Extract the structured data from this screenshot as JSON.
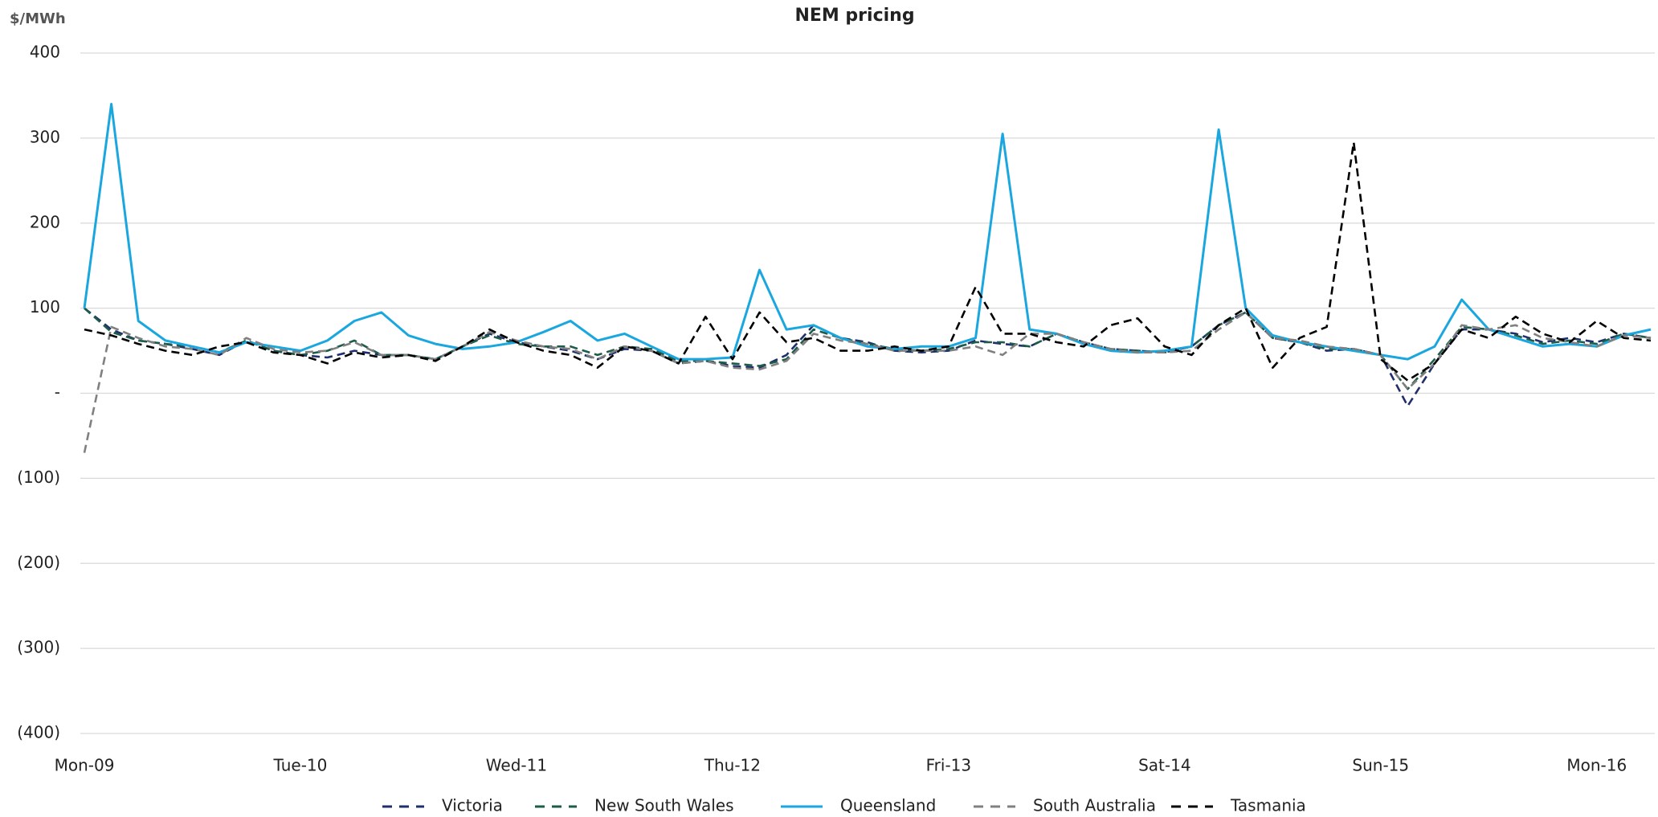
{
  "chart_data": {
    "type": "line",
    "title": "NEM pricing",
    "y_label": "$/MWh",
    "categories": [
      "Mon-09",
      null,
      null,
      null,
      null,
      null,
      null,
      null,
      "Tue-10",
      null,
      null,
      null,
      null,
      null,
      null,
      null,
      "Wed-11",
      null,
      null,
      null,
      null,
      null,
      null,
      null,
      "Thu-12",
      null,
      null,
      null,
      null,
      null,
      null,
      null,
      "Fri-13",
      null,
      null,
      null,
      null,
      null,
      null,
      null,
      "Sat-14",
      null,
      null,
      null,
      null,
      null,
      null,
      null,
      "Sun-15",
      null,
      null,
      null,
      null,
      null,
      null,
      null,
      "Mon-16",
      null,
      null
    ],
    "ylim": [
      -400,
      400
    ],
    "yticks": [
      {
        "value": -400,
        "label": "(400)"
      },
      {
        "value": -300,
        "label": "(300)"
      },
      {
        "value": -200,
        "label": "(200)"
      },
      {
        "value": -100,
        "label": "(100)"
      },
      {
        "value": 0,
        "label": "-"
      },
      100,
      200,
      300,
      400
    ],
    "grid": true,
    "legend": "bottom",
    "series": [
      {
        "name": "Victoria",
        "color": "#1f2f6b",
        "dash": true,
        "values": [
          100,
          75,
          62,
          58,
          52,
          45,
          62,
          50,
          45,
          42,
          50,
          45,
          45,
          40,
          55,
          70,
          60,
          55,
          50,
          40,
          52,
          50,
          35,
          38,
          32,
          30,
          45,
          80,
          65,
          60,
          50,
          48,
          50,
          62,
          58,
          55,
          70,
          60,
          52,
          50,
          48,
          55,
          80,
          95,
          65,
          60,
          50,
          52,
          45,
          -15,
          35,
          75,
          75,
          70,
          60,
          65,
          60,
          70,
          65
        ]
      },
      {
        "name": "New South Wales",
        "color": "#1e5c4a",
        "dash": true,
        "values": [
          100,
          72,
          62,
          58,
          55,
          48,
          62,
          50,
          45,
          50,
          62,
          45,
          45,
          40,
          55,
          68,
          58,
          55,
          55,
          45,
          55,
          52,
          38,
          38,
          35,
          32,
          40,
          75,
          65,
          58,
          52,
          50,
          52,
          60,
          60,
          55,
          70,
          60,
          52,
          50,
          48,
          55,
          80,
          95,
          65,
          60,
          52,
          52,
          45,
          5,
          40,
          78,
          75,
          68,
          58,
          62,
          58,
          70,
          65
        ]
      },
      {
        "name": "Queensland",
        "color": "#1aa7e0",
        "dash": false,
        "values": [
          100,
          340,
          85,
          62,
          55,
          48,
          60,
          55,
          50,
          62,
          85,
          95,
          68,
          58,
          52,
          55,
          60,
          72,
          85,
          62,
          70,
          55,
          40,
          40,
          42,
          145,
          75,
          80,
          65,
          55,
          52,
          55,
          55,
          65,
          305,
          75,
          70,
          58,
          50,
          48,
          50,
          55,
          310,
          100,
          68,
          60,
          55,
          50,
          45,
          40,
          55,
          110,
          75,
          65,
          55,
          58,
          55,
          68,
          75
        ]
      },
      {
        "name": "South Australia",
        "color": "#808080",
        "dash": true,
        "values": [
          -70,
          78,
          65,
          55,
          52,
          45,
          65,
          52,
          48,
          50,
          60,
          45,
          45,
          40,
          55,
          72,
          62,
          55,
          52,
          40,
          55,
          50,
          35,
          38,
          30,
          28,
          38,
          70,
          62,
          58,
          50,
          50,
          50,
          55,
          45,
          70,
          70,
          60,
          52,
          48,
          48,
          50,
          75,
          95,
          65,
          62,
          55,
          52,
          45,
          5,
          35,
          80,
          75,
          80,
          65,
          60,
          55,
          68,
          65
        ]
      },
      {
        "name": "Tasmania",
        "color": "#000000",
        "dash": true,
        "values": [
          75,
          68,
          58,
          50,
          45,
          55,
          60,
          48,
          45,
          35,
          48,
          42,
          45,
          38,
          55,
          75,
          60,
          50,
          45,
          30,
          55,
          50,
          35,
          90,
          40,
          95,
          60,
          65,
          50,
          50,
          55,
          50,
          55,
          125,
          70,
          70,
          60,
          55,
          80,
          88,
          55,
          45,
          80,
          100,
          30,
          65,
          78,
          295,
          40,
          15,
          35,
          75,
          65,
          90,
          70,
          60,
          85,
          65,
          62
        ]
      }
    ]
  }
}
